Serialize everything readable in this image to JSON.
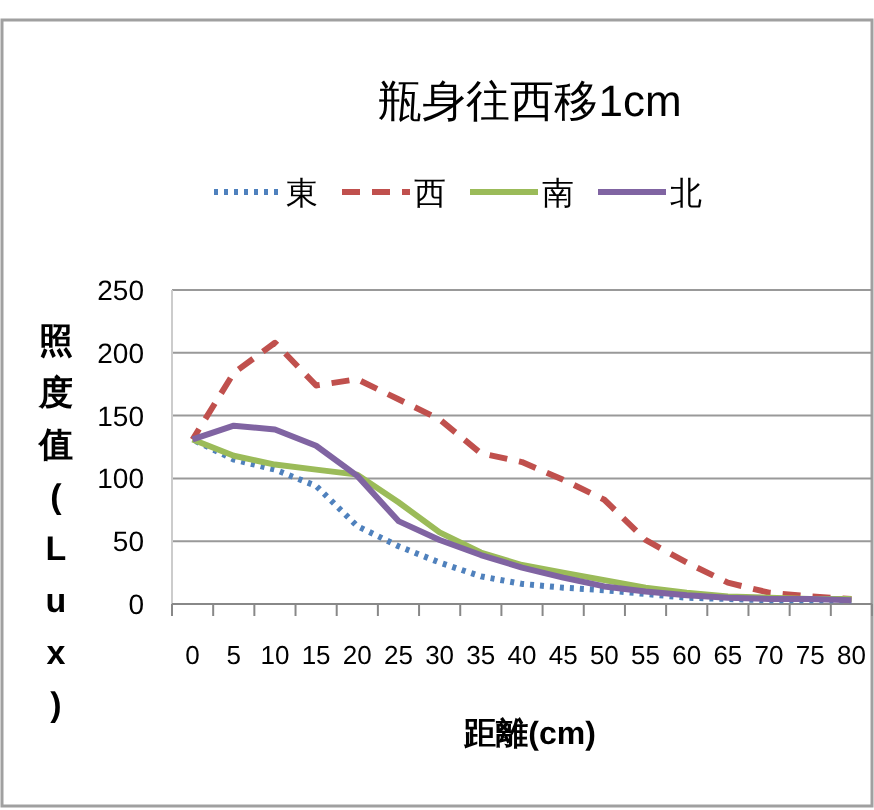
{
  "chart_data": {
    "type": "line",
    "title": "瓶身往西移1cm",
    "xlabel": "距離(cm)",
    "ylabel": "照度值(Lux)",
    "categories": [
      "0",
      "5",
      "10",
      "15",
      "20",
      "25",
      "30",
      "35",
      "40",
      "45",
      "50",
      "55",
      "60",
      "65",
      "70",
      "75",
      "80"
    ],
    "ylim": [
      0,
      250
    ],
    "yticks": [
      0,
      50,
      100,
      150,
      200,
      250
    ],
    "grid": "y",
    "legend": "top",
    "series": [
      {
        "name": "東",
        "color": "#4f81bd",
        "line_style": "dotted",
        "values": [
          131,
          115,
          107,
          94,
          62,
          46,
          33,
          22,
          16,
          13,
          11,
          8,
          5,
          4,
          3,
          3,
          3
        ]
      },
      {
        "name": "西",
        "color": "#c0504d",
        "line_style": "dashed",
        "values": [
          131,
          184,
          208,
          174,
          179,
          163,
          147,
          120,
          113,
          99,
          83,
          51,
          33,
          17,
          9,
          6,
          4
        ]
      },
      {
        "name": "南",
        "color": "#9bbb59",
        "line_style": "solid",
        "values": [
          131,
          118,
          111,
          107,
          103,
          81,
          57,
          41,
          31,
          25,
          19,
          13,
          9,
          6,
          5,
          4,
          4
        ]
      },
      {
        "name": "北",
        "color": "#8064a2",
        "line_style": "solid",
        "values": [
          131,
          142,
          139,
          126,
          102,
          66,
          51,
          39,
          29,
          21,
          14,
          10,
          7,
          5,
          4,
          4,
          3
        ]
      }
    ]
  }
}
